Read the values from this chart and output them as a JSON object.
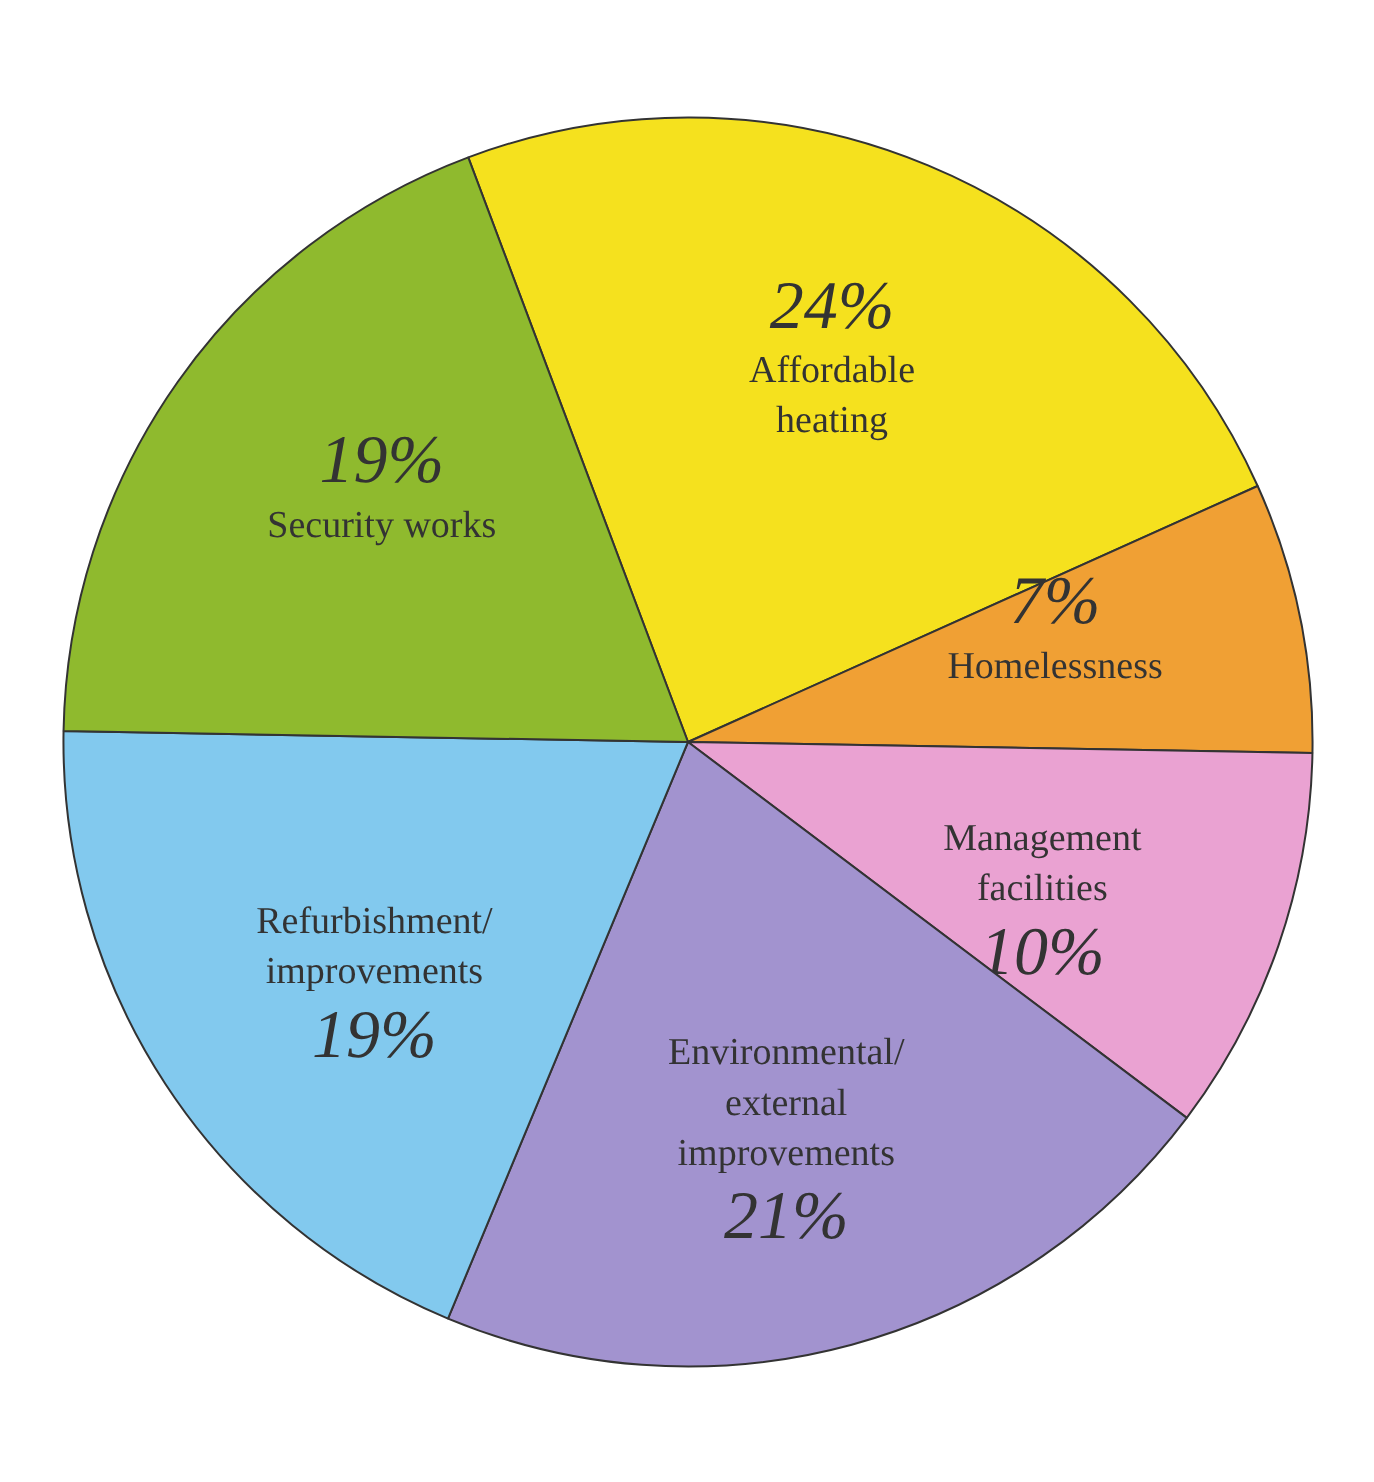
{
  "chart_data": {
    "type": "pie",
    "categories": [
      "Affordable\nheating",
      "Homelessness",
      "Management\nfacilities",
      "Environmental/\nexternal\nimprovements",
      "Refurbishment/\nimprovements",
      "Security works"
    ],
    "values": [
      24,
      7,
      10,
      21,
      19,
      19
    ],
    "colors": [
      "#f5e11e",
      "#f0a034",
      "#eaa2d2",
      "#a293cf",
      "#82c9ee",
      "#8fba2e"
    ],
    "value_labels": [
      "24%",
      "7%",
      "10%",
      "21%",
      "19%",
      "19%"
    ]
  }
}
